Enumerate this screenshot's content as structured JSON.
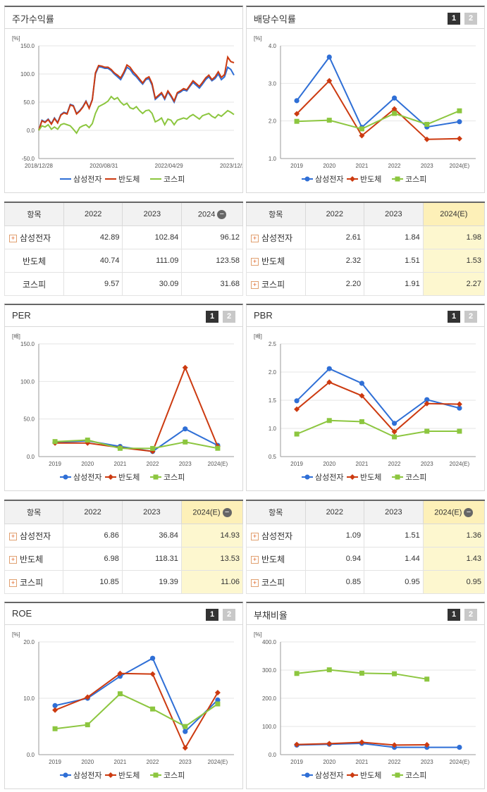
{
  "legend_names": [
    "삼성전자",
    "반도체",
    "코스피"
  ],
  "colors": {
    "samsung": "#2f6fd6",
    "semi": "#cc3a10",
    "kospi": "#8cc63f"
  },
  "tab_labels": [
    "1",
    "2"
  ],
  "panels": [
    {
      "id": "stock",
      "title": "주가수익률",
      "unit": "[%]",
      "tabs": false
    },
    {
      "id": "div",
      "title": "배당수익률",
      "unit": "[%]",
      "tabs": true
    },
    {
      "id": "per",
      "title": "PER",
      "unit": "[배]",
      "tabs": true
    },
    {
      "id": "pbr",
      "title": "PBR",
      "unit": "[배]",
      "tabs": true
    },
    {
      "id": "roe",
      "title": "ROE",
      "unit": "[%]",
      "tabs": true
    },
    {
      "id": "debt",
      "title": "부채비율",
      "unit": "[%]",
      "tabs": true
    }
  ],
  "tables": [
    {
      "id": "stock",
      "header": [
        "항목",
        "2022",
        "2023",
        "2024"
      ],
      "minus_col": 3,
      "hl": false,
      "rows": [
        [
          "삼성전자",
          "42.89",
          "102.84",
          "96.12"
        ],
        [
          "반도체",
          "40.74",
          "111.09",
          "123.58"
        ],
        [
          "코스피",
          "9.57",
          "30.09",
          "31.68"
        ]
      ],
      "plus": [
        true,
        false,
        false
      ]
    },
    {
      "id": "div",
      "header": [
        "항목",
        "2022",
        "2023",
        "2024(E)"
      ],
      "minus_col": -1,
      "hl": true,
      "rows": [
        [
          "삼성전자",
          "2.61",
          "1.84",
          "1.98"
        ],
        [
          "반도체",
          "2.32",
          "1.51",
          "1.53"
        ],
        [
          "코스피",
          "2.20",
          "1.91",
          "2.27"
        ]
      ],
      "plus": [
        true,
        true,
        true
      ]
    },
    {
      "id": "per",
      "header": [
        "항목",
        "2022",
        "2023",
        "2024(E)"
      ],
      "minus_col": 3,
      "hl": true,
      "rows": [
        [
          "삼성전자",
          "6.86",
          "36.84",
          "14.93"
        ],
        [
          "반도체",
          "6.98",
          "118.31",
          "13.53"
        ],
        [
          "코스피",
          "10.85",
          "19.39",
          "11.06"
        ]
      ],
      "plus": [
        true,
        true,
        true
      ]
    },
    {
      "id": "pbr",
      "header": [
        "항목",
        "2022",
        "2023",
        "2024(E)"
      ],
      "minus_col": 3,
      "hl": true,
      "rows": [
        [
          "삼성전자",
          "1.09",
          "1.51",
          "1.36"
        ],
        [
          "반도체",
          "0.94",
          "1.44",
          "1.43"
        ],
        [
          "코스피",
          "0.85",
          "0.95",
          "0.95"
        ]
      ],
      "plus": [
        true,
        true,
        true
      ]
    }
  ],
  "chart_data": [
    {
      "id": "stock",
      "type": "line",
      "title": "주가수익률",
      "ylabel": "[%]",
      "ylim": [
        -50,
        150
      ],
      "yticks": [
        "150.0",
        "100.0",
        "50.0",
        "0.0",
        "-50.0"
      ],
      "xticks": [
        "2018/12/28",
        "2020/08/31",
        "2022/04/29",
        "2023/12/28"
      ],
      "x_range": [
        0,
        62
      ],
      "series": [
        {
          "name": "삼성전자",
          "key": "samsung",
          "values": [
            0,
            18,
            15,
            20,
            12,
            22,
            14,
            28,
            32,
            30,
            46,
            44,
            30,
            35,
            42,
            52,
            40,
            55,
            100,
            113,
            112,
            110,
            110,
            106,
            100,
            95,
            90,
            100,
            112,
            108,
            100,
            95,
            88,
            82,
            90,
            92,
            80,
            55,
            60,
            65,
            55,
            68,
            60,
            50,
            65,
            68,
            72,
            70,
            78,
            85,
            80,
            75,
            82,
            90,
            95,
            88,
            92,
            100,
            90,
            95,
            112,
            108,
            98
          ],
          "marker": false
        },
        {
          "name": "반도체",
          "key": "semi",
          "values": [
            0,
            17,
            14,
            19,
            11,
            21,
            13,
            27,
            31,
            29,
            45,
            43,
            29,
            34,
            41,
            51,
            39,
            54,
            102,
            115,
            114,
            112,
            112,
            108,
            102,
            98,
            93,
            103,
            116,
            112,
            104,
            98,
            91,
            84,
            92,
            95,
            83,
            57,
            62,
            67,
            57,
            70,
            62,
            52,
            67,
            70,
            74,
            72,
            80,
            88,
            83,
            78,
            85,
            93,
            98,
            90,
            95,
            104,
            94,
            99,
            130,
            122,
            120
          ],
          "marker": false
        },
        {
          "name": "코스피",
          "key": "kospi",
          "values": [
            0,
            8,
            6,
            10,
            2,
            6,
            2,
            10,
            12,
            10,
            8,
            2,
            -5,
            5,
            8,
            10,
            5,
            12,
            30,
            42,
            45,
            48,
            52,
            60,
            55,
            58,
            50,
            45,
            48,
            40,
            38,
            42,
            35,
            30,
            35,
            36,
            30,
            15,
            18,
            22,
            10,
            20,
            18,
            10,
            18,
            20,
            22,
            20,
            25,
            28,
            24,
            20,
            26,
            28,
            30,
            25,
            22,
            28,
            25,
            30,
            35,
            32,
            28
          ],
          "marker": false
        }
      ]
    },
    {
      "id": "div",
      "type": "line",
      "title": "배당수익률",
      "ylabel": "[%]",
      "ylim": [
        1.0,
        4.0
      ],
      "yticks": [
        "4.0",
        "3.0",
        "2.0",
        "1.0"
      ],
      "categories": [
        "2019",
        "2020",
        "2021",
        "2022",
        "2023",
        "2024(E)"
      ],
      "series": [
        {
          "name": "삼성전자",
          "key": "samsung",
          "values": [
            2.54,
            3.7,
            1.83,
            2.61,
            1.84,
            1.98
          ],
          "marker": "circle"
        },
        {
          "name": "반도체",
          "key": "semi",
          "values": [
            2.19,
            3.07,
            1.61,
            2.32,
            1.51,
            1.53
          ],
          "marker": "diamond"
        },
        {
          "name": "코스피",
          "key": "kospi",
          "values": [
            1.99,
            2.02,
            1.79,
            2.2,
            1.91,
            2.27
          ],
          "marker": "square"
        }
      ]
    },
    {
      "id": "per",
      "type": "line",
      "title": "PER",
      "ylabel": "[배]",
      "ylim": [
        0,
        150
      ],
      "yticks": [
        "150.0",
        "100.0",
        "50.0",
        "0.0"
      ],
      "categories": [
        "2019",
        "2020",
        "2021",
        "2022",
        "2023",
        "2024(E)"
      ],
      "series": [
        {
          "name": "삼성전자",
          "key": "samsung",
          "values": [
            19.0,
            21.0,
            13.5,
            6.86,
            36.84,
            14.93
          ],
          "marker": "circle"
        },
        {
          "name": "반도체",
          "key": "semi",
          "values": [
            18.0,
            18.0,
            12.0,
            6.98,
            118.31,
            13.53
          ],
          "marker": "diamond"
        },
        {
          "name": "코스피",
          "key": "kospi",
          "values": [
            20.0,
            22.0,
            11.0,
            10.85,
            19.39,
            11.06
          ],
          "marker": "square"
        }
      ]
    },
    {
      "id": "pbr",
      "type": "line",
      "title": "PBR",
      "ylabel": "[배]",
      "ylim": [
        0.5,
        2.5
      ],
      "yticks": [
        "2.5",
        "2.0",
        "1.5",
        "1.0",
        "0.5"
      ],
      "categories": [
        "2019",
        "2020",
        "2021",
        "2022",
        "2023",
        "2024(E)"
      ],
      "series": [
        {
          "name": "삼성전자",
          "key": "samsung",
          "values": [
            1.49,
            2.06,
            1.8,
            1.09,
            1.51,
            1.36
          ],
          "marker": "circle"
        },
        {
          "name": "반도체",
          "key": "semi",
          "values": [
            1.34,
            1.82,
            1.58,
            0.94,
            1.44,
            1.43
          ],
          "marker": "diamond"
        },
        {
          "name": "코스피",
          "key": "kospi",
          "values": [
            0.9,
            1.14,
            1.12,
            0.85,
            0.95,
            0.95
          ],
          "marker": "square"
        }
      ]
    },
    {
      "id": "roe",
      "type": "line",
      "title": "ROE",
      "ylabel": "[%]",
      "ylim": [
        0,
        20
      ],
      "yticks": [
        "20.0",
        "10.0",
        "0.0"
      ],
      "categories": [
        "2019",
        "2020",
        "2021",
        "2022",
        "2023",
        "2024(E)"
      ],
      "series": [
        {
          "name": "삼성전자",
          "key": "samsung",
          "values": [
            8.7,
            10.0,
            13.9,
            17.1,
            4.1,
            9.7
          ],
          "marker": "circle"
        },
        {
          "name": "반도체",
          "key": "semi",
          "values": [
            7.9,
            10.2,
            14.4,
            14.3,
            1.2,
            11.0
          ],
          "marker": "diamond"
        },
        {
          "name": "코스피",
          "key": "kospi",
          "values": [
            4.6,
            5.3,
            10.8,
            8.1,
            5.0,
            9.0
          ],
          "marker": "square"
        }
      ]
    },
    {
      "id": "debt",
      "type": "line",
      "title": "부채비율",
      "ylabel": "[%]",
      "ylim": [
        0,
        400
      ],
      "yticks": [
        "400.0",
        "300.0",
        "200.0",
        "100.0",
        "0.0"
      ],
      "categories": [
        "2019",
        "2020",
        "2021",
        "2022",
        "2023",
        "2024(E)"
      ],
      "series": [
        {
          "name": "삼성전자",
          "key": "samsung",
          "values": [
            34,
            37,
            40,
            26,
            26,
            26
          ],
          "marker": "circle"
        },
        {
          "name": "반도체",
          "key": "semi",
          "values": [
            36,
            39,
            44,
            34,
            35,
            null
          ],
          "marker": "diamond"
        },
        {
          "name": "코스피",
          "key": "kospi",
          "values": [
            288,
            301,
            289,
            287,
            268,
            null
          ],
          "marker": "square"
        }
      ]
    }
  ]
}
